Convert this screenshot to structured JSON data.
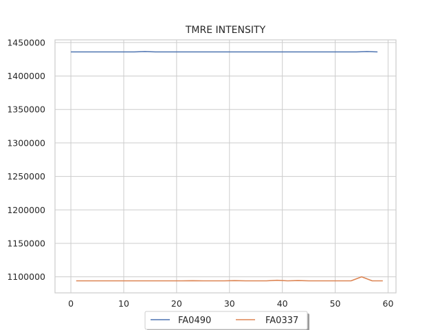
{
  "chart_data": {
    "type": "line",
    "title": "TMRE INTENSITY",
    "xlabel": "",
    "ylabel": "",
    "xlim": [
      -3,
      61.5
    ],
    "ylim": [
      1076000,
      1454000
    ],
    "xticks": [
      0,
      10,
      20,
      30,
      40,
      50,
      60
    ],
    "yticks": [
      1100000,
      1150000,
      1200000,
      1250000,
      1300000,
      1350000,
      1400000,
      1450000
    ],
    "grid": true,
    "legend_position": "bottom-center",
    "series": [
      {
        "name": "FA0490",
        "color": "#4c72b0",
        "x": [
          0,
          2,
          4,
          6,
          8,
          10,
          12,
          14,
          16,
          18,
          20,
          22,
          24,
          26,
          28,
          30,
          32,
          34,
          36,
          38,
          40,
          42,
          44,
          46,
          48,
          50,
          52,
          54,
          56,
          58
        ],
        "y": [
          1436000,
          1436000,
          1436000,
          1436000,
          1436000,
          1436000,
          1436000,
          1436500,
          1436000,
          1436000,
          1436000,
          1436000,
          1436000,
          1436000,
          1436000,
          1436000,
          1436000,
          1436000,
          1436000,
          1436000,
          1436000,
          1436000,
          1436000,
          1436000,
          1436000,
          1436000,
          1436000,
          1436000,
          1436500,
          1436000
        ]
      },
      {
        "name": "FA0337",
        "color": "#dd8452",
        "x": [
          1,
          3,
          5,
          7,
          9,
          11,
          13,
          15,
          17,
          19,
          21,
          23,
          25,
          27,
          29,
          31,
          33,
          35,
          37,
          39,
          41,
          43,
          45,
          47,
          49,
          51,
          53,
          55,
          57,
          59
        ],
        "y": [
          1094000,
          1094000,
          1094000,
          1094000,
          1094000,
          1094000,
          1094000,
          1094000,
          1094000,
          1094000,
          1094000,
          1094200,
          1094000,
          1094000,
          1094000,
          1094300,
          1094000,
          1094000,
          1094000,
          1094800,
          1094000,
          1094400,
          1094000,
          1094000,
          1094000,
          1094000,
          1094000,
          1100000,
          1094000,
          1094000
        ]
      }
    ]
  }
}
